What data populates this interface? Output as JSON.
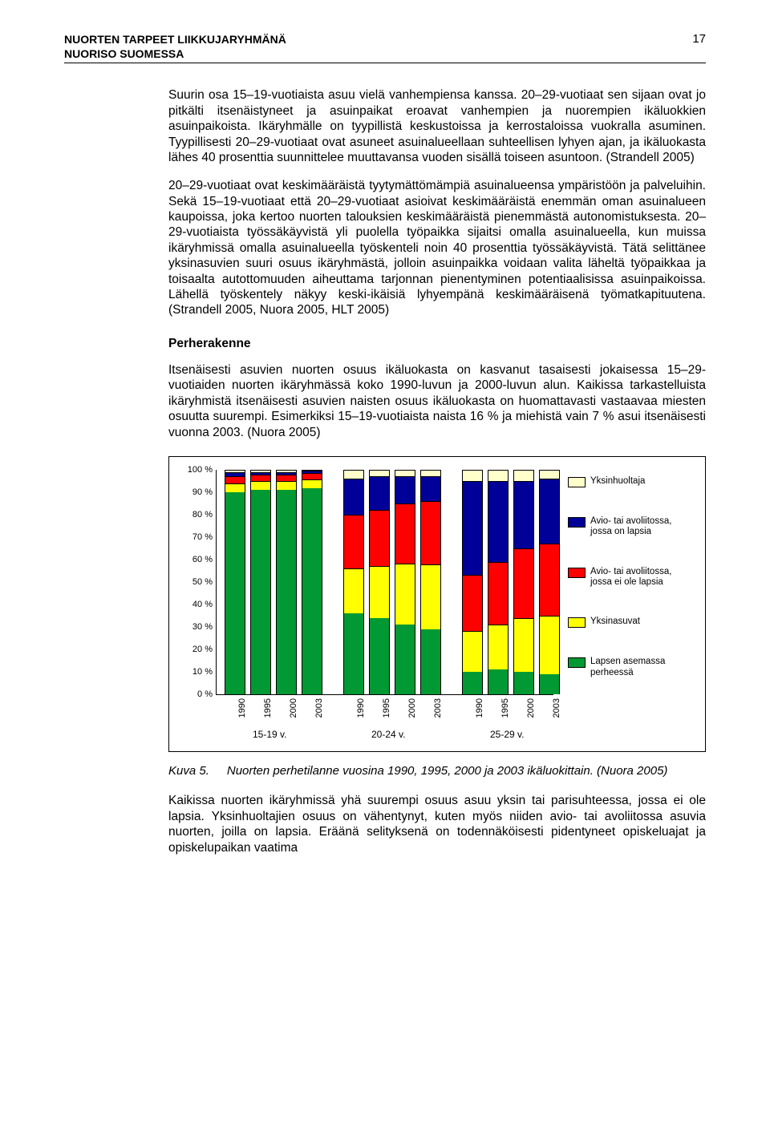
{
  "header": {
    "line1": "NUORTEN TARPEET LIIKKUJARYHMÄNÄ",
    "line2": "NUORISO SUOMESSA",
    "page_number": "17"
  },
  "paragraphs": {
    "p1": "Suurin osa 15–19-vuotiaista asuu vielä vanhempiensa kanssa. 20–29-vuotiaat sen sijaan ovat jo pitkälti itsenäistyneet ja asuinpaikat eroavat vanhempien ja nuorempien ikäluokkien asuinpaikoista. Ikäryhmälle on tyypillistä keskustoissa ja kerrostaloissa vuokralla asuminen. Tyypillisesti 20–29-vuotiaat ovat asuneet asuinalueellaan suhteellisen lyhyen ajan, ja ikäluokasta lähes 40 prosenttia suunnittelee muuttavansa vuoden sisällä toiseen asuntoon. (Strandell 2005)",
    "p2": "20–29-vuotiaat ovat keskimääräistä tyytymättömämpiä asuinalueensa ympäristöön ja palveluihin. Sekä 15–19-vuotiaat että 20–29-vuotiaat asioivat keskimääräistä enemmän oman asuinalueen kaupoissa, joka kertoo nuorten talouksien keskimääräistä pienemmästä autonomistuksesta. 20–29-vuotiaista työssäkäyvistä yli puolella työpaikka sijaitsi omalla asuinalueella, kun muissa ikäryhmissä omalla asuinalueella työskenteli noin 40 prosenttia työssäkäyvistä. Tätä selittänee yksinasuvien suuri osuus ikäryhmästä, jolloin asuinpaikka voidaan valita läheltä työpaikkaa ja toisaalta autottomuuden aiheuttama tarjonnan pienentyminen potentiaalisissa asuinpaikoissa. Lähellä työskentely näkyy keski-ikäisiä lyhyempänä keskimääräisenä työmatkapituutena. (Strandell 2005, Nuora 2005, HLT 2005)",
    "section": "Perherakenne",
    "p3": "Itsenäisesti asuvien nuorten osuus ikäluokasta on kasvanut tasaisesti jokaisessa 15–29-vuotiaiden nuorten ikäryhmässä koko 1990-luvun ja 2000-luvun alun. Kaikissa tarkastelluista ikäryhmistä itsenäisesti asuvien naisten osuus ikäluokasta on huomattavasti vastaavaa miesten osuutta suurempi. Esimerkiksi 15–19-vuotiaista naista 16 % ja miehistä vain 7 % asui itsenäisesti vuonna 2003. (Nuora 2005)",
    "p4": "Kaikissa nuorten ikäryhmissä yhä suurempi osuus asuu yksin tai parisuhteessa, jossa ei ole lapsia. Yksinhuoltajien osuus on vähentynyt, kuten myös niiden avio- tai avoliitossa asuvia nuorten, joilla on lapsia. Eräänä selityksenä on todennäköisesti pidentyneet opiskeluajat ja opiskelupaikan vaatima"
  },
  "caption": {
    "label": "Kuva 5.",
    "text": "Nuorten perhetilanne vuosina 1990, 1995, 2000 ja 2003 ikäluokittain. (Nuora 2005)"
  },
  "chart": {
    "type": "stacked-bar-100",
    "background_color": "#ffffff",
    "border_color": "#000000",
    "y_ticks": [
      "0 %",
      "10 %",
      "20 %",
      "30 %",
      "40 %",
      "50 %",
      "60 %",
      "70 %",
      "80 %",
      "90 %",
      "100 %"
    ],
    "series": [
      {
        "key": "lapsen",
        "label": "Lapsen asemassa perheessä",
        "color": "#009933"
      },
      {
        "key": "yksin",
        "label": "Yksinasuvat",
        "color": "#ffff00"
      },
      {
        "key": "ei_lapsia",
        "label": "Avio- tai avoliitossa, jossa ei ole lapsia",
        "color": "#ff0000"
      },
      {
        "key": "on_lapsia",
        "label": "Avio- tai avoliitossa, jossa on lapsia",
        "color": "#000099"
      },
      {
        "key": "yh",
        "label": "Yksinhuoltaja",
        "color": "#ffffcc"
      }
    ],
    "groups": [
      {
        "label": "15-19 v.",
        "bars": [
          {
            "x": "1990",
            "lapsen": 90,
            "yksin": 4,
            "ei_lapsia": 3,
            "on_lapsia": 2,
            "yh": 1
          },
          {
            "x": "1995",
            "lapsen": 91,
            "yksin": 4,
            "ei_lapsia": 3,
            "on_lapsia": 1,
            "yh": 1
          },
          {
            "x": "2000",
            "lapsen": 91,
            "yksin": 4,
            "ei_lapsia": 3,
            "on_lapsia": 1,
            "yh": 1
          },
          {
            "x": "2003",
            "lapsen": 92,
            "yksin": 4,
            "ei_lapsia": 3,
            "on_lapsia": 1,
            "yh": 0
          }
        ]
      },
      {
        "label": "20-24 v.",
        "bars": [
          {
            "x": "1990",
            "lapsen": 36,
            "yksin": 20,
            "ei_lapsia": 24,
            "on_lapsia": 16,
            "yh": 4
          },
          {
            "x": "1995",
            "lapsen": 34,
            "yksin": 23,
            "ei_lapsia": 25,
            "on_lapsia": 15,
            "yh": 3
          },
          {
            "x": "2000",
            "lapsen": 31,
            "yksin": 27,
            "ei_lapsia": 27,
            "on_lapsia": 12,
            "yh": 3
          },
          {
            "x": "2003",
            "lapsen": 29,
            "yksin": 29,
            "ei_lapsia": 28,
            "on_lapsia": 11,
            "yh": 3
          }
        ]
      },
      {
        "label": "25-29 v.",
        "bars": [
          {
            "x": "1990",
            "lapsen": 10,
            "yksin": 18,
            "ei_lapsia": 25,
            "on_lapsia": 42,
            "yh": 5
          },
          {
            "x": "1995",
            "lapsen": 11,
            "yksin": 20,
            "ei_lapsia": 28,
            "on_lapsia": 36,
            "yh": 5
          },
          {
            "x": "2000",
            "lapsen": 10,
            "yksin": 24,
            "ei_lapsia": 31,
            "on_lapsia": 30,
            "yh": 5
          },
          {
            "x": "2003",
            "lapsen": 9,
            "yksin": 26,
            "ei_lapsia": 32,
            "on_lapsia": 29,
            "yh": 4
          }
        ]
      }
    ]
  }
}
